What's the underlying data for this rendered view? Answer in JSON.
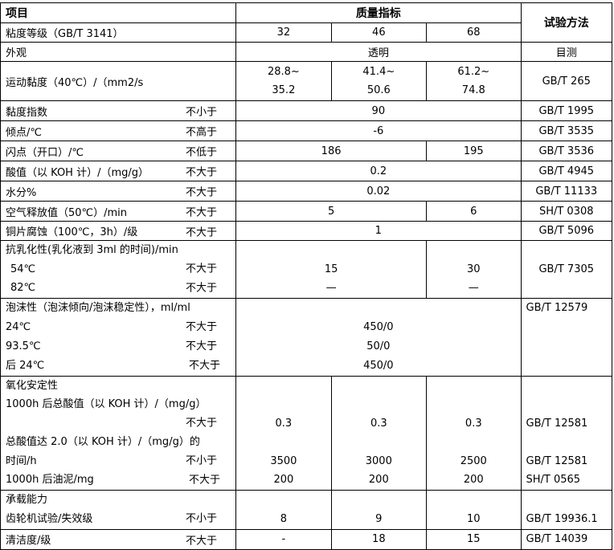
{
  "header": {
    "item": "项目",
    "quality": "质量指标",
    "method": "试验方法"
  },
  "grade": {
    "label": "粘度等级（GB/T 3141）",
    "v": [
      "32",
      "46",
      "68"
    ]
  },
  "appearance": {
    "label": "外观",
    "value": "透明",
    "method": "目测"
  },
  "kv": {
    "label": "运动黏度（40℃）/（mm2/s",
    "v1": [
      "28.8~",
      "41.4~",
      "61.2~"
    ],
    "v2": [
      "35.2",
      "50.6",
      "74.8"
    ],
    "method": "GB/T 265"
  },
  "vi": {
    "label": "黏度指数",
    "q": "不小于",
    "value": "90",
    "method": "GB/T 1995"
  },
  "pour": {
    "label": "倾点/℃",
    "q": "不高于",
    "value": "-6",
    "method": "GB/T 3535"
  },
  "flash": {
    "label": "闪点（开口）/℃",
    "q": "不低于",
    "v12": "186",
    "v3": "195",
    "method": "GB/T 3536"
  },
  "acid": {
    "label": "酸值（以 KOH 计）/（mg/g）",
    "q": "不大于",
    "value": "0.2",
    "method": "GB/T 4945"
  },
  "water": {
    "label": "水分%",
    "q": "不大于",
    "value": "0.02",
    "method": "GB/T 11133"
  },
  "air": {
    "label": "空气释放值（50℃）/min",
    "q": "不大于",
    "v12": "5",
    "v3": "6",
    "method": "SH/T 0308"
  },
  "copper": {
    "label": "铜片腐蚀（100℃，3h）/级",
    "q": "不大于",
    "value": "1",
    "method": "GB/T 5096"
  },
  "demuls": {
    "label": "抗乳化性(乳化液到 3ml 的时间)/min",
    "l1": "54℃",
    "l2": "82℃",
    "q": "不大于",
    "v12a": "15",
    "v12b": "—",
    "v3a": "30",
    "v3b": "—",
    "method": "GB/T 7305"
  },
  "foam": {
    "label": "泡沫性（泡沫倾向/泡沫稳定性），ml/ml",
    "l1": "24℃",
    "l2": "93.5℃",
    "l3": "后 24℃",
    "q": "不大于",
    "v": [
      "450/0",
      "50/0",
      "450/0"
    ],
    "method": "GB/T 12579"
  },
  "oxid": {
    "label": "氧化安定性",
    "a_label": "1000h 后总酸值（以 KOH 计）/（mg/g）",
    "a_q": "不大于",
    "b_label1": "总酸值达 2.0（以 KOH 计）/（mg/g）的",
    "b_label2": "时间/h",
    "b_q": "不小于",
    "c_label": "1000h 后油泥/mg",
    "c_q": "不大于",
    "a": [
      "0.3",
      "0.3",
      "0.3"
    ],
    "b": [
      "3500",
      "3000",
      "2500"
    ],
    "c": [
      "200",
      "200",
      "200"
    ],
    "a_method": "GB/T 12581",
    "b_method": "GB/T 12581",
    "c_method": "SH/T 0565"
  },
  "load": {
    "label": "承载能力",
    "sub": "齿轮机试验/失效级",
    "q": "不小于",
    "v": [
      "8",
      "9",
      "10"
    ],
    "method": "GB/T 19936.1"
  },
  "clean": {
    "label": "清洁度/级",
    "q": "不大于",
    "v": [
      "-",
      "18",
      "15"
    ],
    "method": "GB/T 14039"
  }
}
